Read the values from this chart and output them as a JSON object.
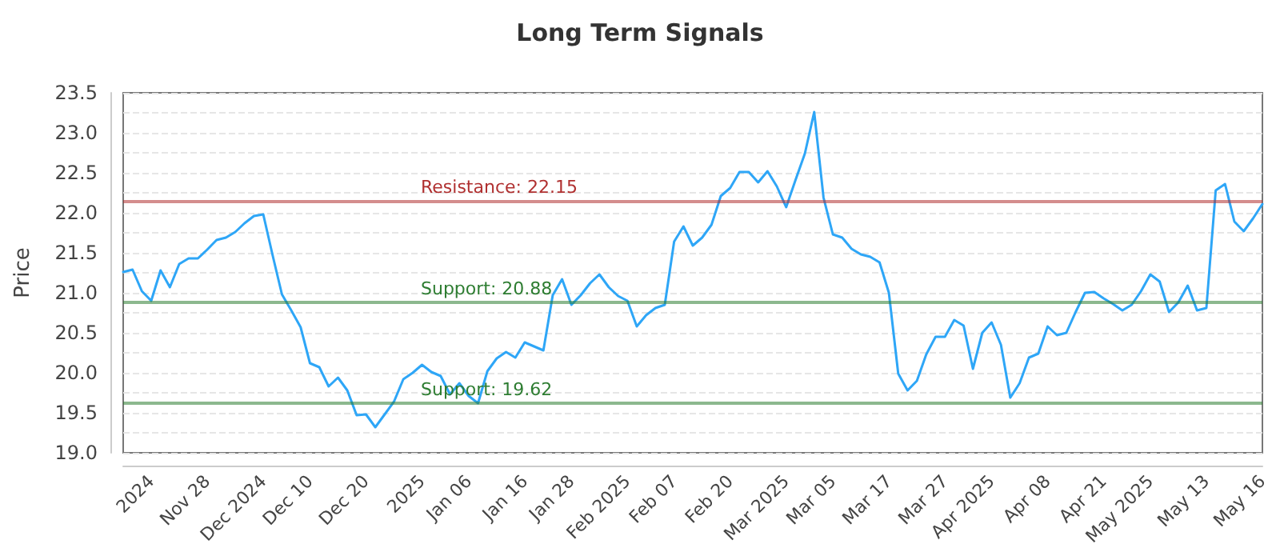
{
  "chart_data": {
    "type": "line",
    "title": "Long Term Signals",
    "ylabel": "Price",
    "categories": [
      null,
      null,
      null,
      "2024",
      null,
      null,
      null,
      null,
      null,
      "Nov 28",
      null,
      null,
      null,
      null,
      null,
      "Dec 2024",
      null,
      null,
      null,
      null,
      "Dec 10",
      null,
      null,
      null,
      null,
      null,
      "Dec 20",
      null,
      null,
      null,
      null,
      null,
      "2025",
      null,
      null,
      null,
      null,
      "Jan 06",
      null,
      null,
      null,
      null,
      null,
      "Jan 16",
      null,
      null,
      null,
      null,
      "Jan 28",
      null,
      null,
      null,
      null,
      null,
      "Feb 2025",
      null,
      null,
      null,
      null,
      "Feb 07",
      null,
      null,
      null,
      null,
      null,
      "Feb 20",
      null,
      null,
      null,
      null,
      null,
      "Mar 2025",
      null,
      null,
      null,
      null,
      "Mar 05",
      null,
      null,
      null,
      null,
      null,
      "Mar 17",
      null,
      null,
      null,
      null,
      null,
      "Mar 27",
      null,
      null,
      null,
      null,
      "Apr 2025",
      null,
      null,
      null,
      null,
      null,
      "Apr 08",
      null,
      null,
      null,
      null,
      null,
      "Apr 21",
      null,
      null,
      null,
      null,
      "May 2025",
      null,
      null,
      null,
      null,
      null,
      "May 13",
      null,
      null,
      null,
      null,
      null,
      "May 16"
    ],
    "series": [
      {
        "color": "#2ea6f7",
        "values": [
          21.26,
          21.29,
          21.02,
          20.9,
          21.28,
          21.07,
          21.36,
          21.43,
          21.43,
          21.54,
          21.66,
          21.69,
          21.76,
          21.87,
          21.96,
          21.98,
          21.47,
          20.98,
          20.78,
          20.57,
          20.12,
          20.07,
          19.83,
          19.94,
          19.78,
          19.47,
          19.48,
          19.32,
          19.48,
          19.64,
          19.92,
          20.0,
          20.1,
          20.01,
          19.96,
          19.73,
          19.87,
          19.71,
          19.62,
          20.02,
          20.18,
          20.26,
          20.19,
          20.38,
          20.33,
          20.28,
          20.97,
          21.17,
          20.85,
          20.97,
          21.12,
          21.23,
          21.07,
          20.96,
          20.9,
          20.58,
          20.72,
          20.81,
          20.85,
          21.64,
          21.83,
          21.59,
          21.69,
          21.85,
          22.21,
          22.31,
          22.51,
          22.51,
          22.38,
          22.52,
          22.33,
          22.07,
          22.41,
          22.74,
          23.26,
          22.19,
          21.73,
          21.69,
          21.55,
          21.48,
          21.45,
          21.38,
          21.0,
          19.99,
          19.78,
          19.9,
          20.23,
          20.45,
          20.45,
          20.66,
          20.59,
          20.05,
          20.5,
          20.63,
          20.35,
          19.69,
          19.87,
          20.19,
          20.24,
          20.58,
          20.47,
          20.5,
          20.76,
          21.0,
          21.01,
          20.93,
          20.86,
          20.78,
          20.85,
          21.02,
          21.23,
          21.14,
          20.76,
          20.88,
          21.09,
          20.78,
          20.81,
          22.28,
          22.36,
          21.89,
          21.77,
          21.93,
          22.11
        ]
      }
    ],
    "ylim": [
      19.0,
      23.5
    ],
    "yticks": [
      "19.0",
      {
        "value": 19.25,
        "label": null
      },
      "19.5",
      {
        "value": 19.75,
        "label": null
      },
      "20.0",
      {
        "value": 20.25,
        "label": null
      },
      "20.5",
      {
        "value": 20.75,
        "label": null
      },
      "21.0",
      {
        "value": 21.25,
        "label": null
      },
      "21.5",
      {
        "value": 21.75,
        "label": null
      },
      "22.0",
      {
        "value": 22.25,
        "label": null
      },
      "22.5",
      {
        "value": 22.75,
        "label": null
      },
      "23.0",
      {
        "value": 23.25,
        "label": null
      },
      "23.5"
    ],
    "ref_lines": [
      {
        "axis": "y",
        "value": 22.15,
        "label": "Resistance: 22.15",
        "color": "#b03030"
      },
      {
        "axis": "y",
        "value": 20.88,
        "label": "Support: 20.88",
        "color": "#2e7d32"
      },
      {
        "axis": "y",
        "value": 19.62,
        "label": "Support: 19.62",
        "color": "#2e7d32"
      }
    ],
    "grid": "y",
    "marker": "none",
    "line_style": "solid"
  }
}
